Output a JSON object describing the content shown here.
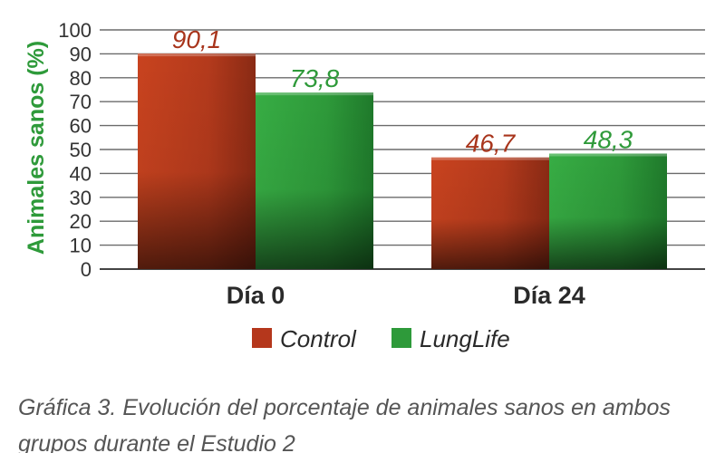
{
  "chart_data": {
    "type": "bar",
    "categories": [
      "Día 0",
      "Día 24"
    ],
    "series": [
      {
        "name": "Control",
        "values": [
          90.1,
          46.7
        ],
        "labels": [
          "90,1",
          "46,7"
        ],
        "color": "#b5371c",
        "label_color": "#a8351c"
      },
      {
        "name": "LungLife",
        "values": [
          73.8,
          48.3
        ],
        "labels": [
          "73,8",
          "48,3"
        ],
        "color": "#2e9a3a",
        "label_color": "#2f9a3a"
      }
    ],
    "title": "",
    "xlabel": "",
    "ylabel": "Animales sanos (%)",
    "ylabel_color": "#2e9a3a",
    "ylim": [
      0,
      100
    ],
    "yticks": [
      "0",
      "10",
      "20",
      "30",
      "40",
      "50",
      "60",
      "70",
      "80",
      "90",
      "100"
    ],
    "grid": true,
    "legend_position": "bottom-center"
  },
  "caption": "Gráfica 3. Evolución del porcentaje de animales sanos en ambos grupos durante el Estudio 2"
}
